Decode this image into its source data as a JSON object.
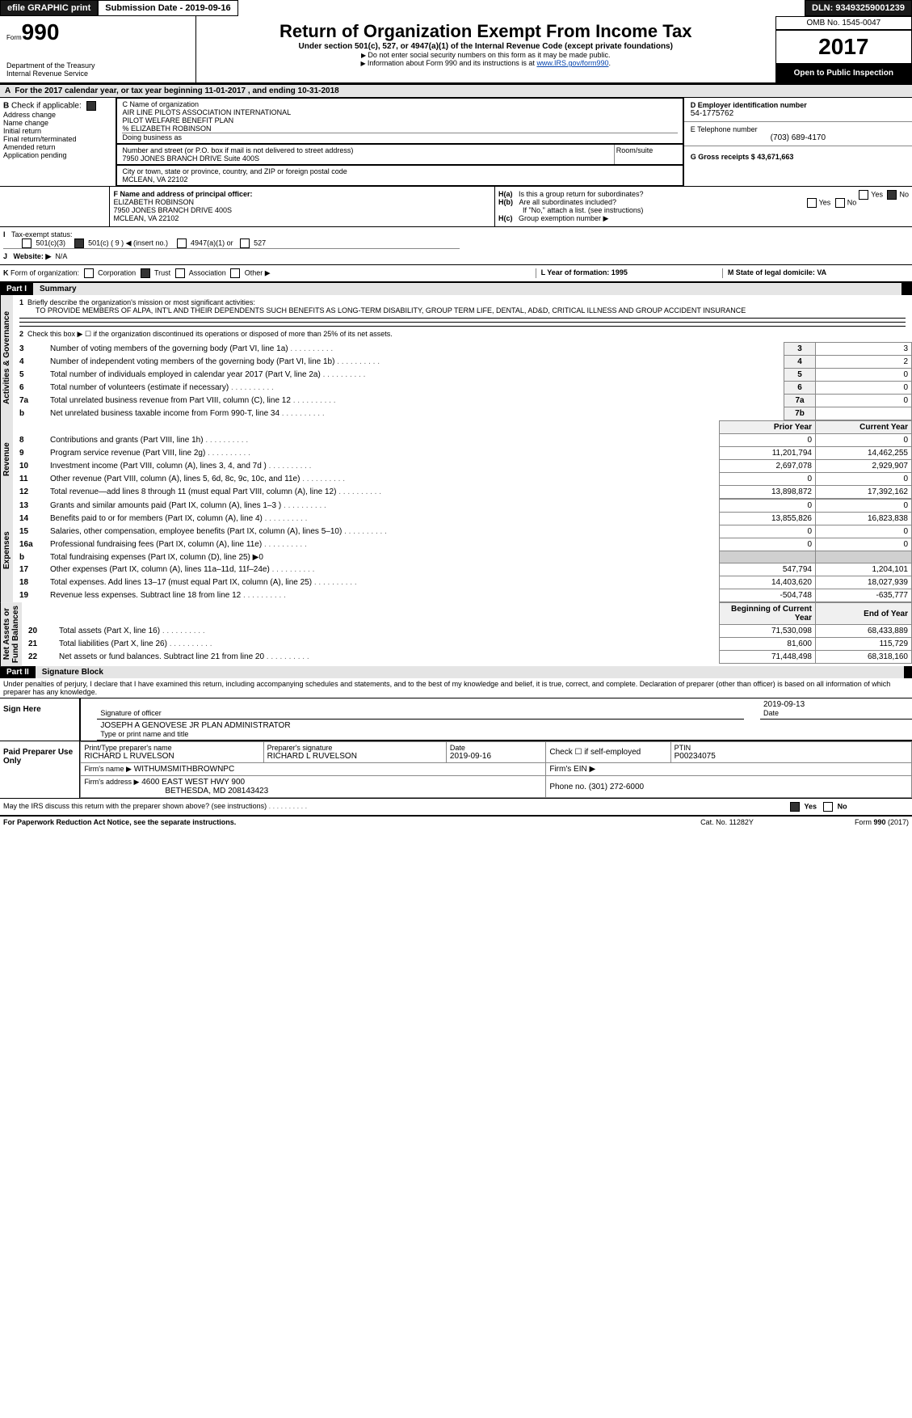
{
  "topbar": {
    "efile": "efile GRAPHIC print",
    "submission_label": "Submission Date - 2019-09-16",
    "dln_label": "DLN: 93493259001239"
  },
  "header": {
    "form_prefix": "Form",
    "form_number": "990",
    "dept": "Department of the Treasury",
    "irs": "Internal Revenue Service",
    "title": "Return of Organization Exempt From Income Tax",
    "subtitle": "Under section 501(c), 527, or 4947(a)(1) of the Internal Revenue Code (except private foundations)",
    "note1": "Do not enter social security numbers on this form as it may be made public.",
    "note2": "Information about Form 990 and its instructions is at ",
    "note2_link": "www.IRS.gov/form990",
    "omb": "OMB No. 1545-0047",
    "year": "2017",
    "open_public": "Open to Public Inspection"
  },
  "period": {
    "line": "For the 2017 calendar year, or tax year beginning 11-01-2017        , and ending 10-31-2018"
  },
  "box_b": {
    "title": "Check if applicable:",
    "items": [
      "Address change",
      "Name change",
      "Initial return",
      "Final return/terminated",
      "Amended return",
      "Application pending"
    ]
  },
  "box_c": {
    "label": "C Name of organization",
    "name1": "AIR LINE PILOTS ASSOCIATION INTERNATIONAL",
    "name2": "PILOT WELFARE BENEFIT PLAN",
    "name3": "% ELIZABETH ROBINSON",
    "dba_label": "Doing business as",
    "addr_label": "Number and street (or P.O. box if mail is not delivered to street address)",
    "room_label": "Room/suite",
    "addr": "7950 JONES BRANCH DRIVE Suite 400S",
    "city_label": "City or town, state or province, country, and ZIP or foreign postal code",
    "city": "MCLEAN, VA  22102"
  },
  "box_d": {
    "label": "D Employer identification number",
    "value": "54-1775762"
  },
  "box_e": {
    "label": "E Telephone number",
    "value": "(703) 689-4170"
  },
  "box_g": {
    "label": "G Gross receipts $ 43,671,663"
  },
  "box_f": {
    "label": "F  Name and address of principal officer:",
    "name": "ELIZABETH ROBINSON",
    "addr": "7950 JONES BRANCH DRIVE 400S",
    "city": "MCLEAN, VA  22102"
  },
  "box_h": {
    "a": "Is this a group return for subordinates?",
    "b": "Are all subordinates included?",
    "b_note": "If \"No,\" attach a list. (see instructions)",
    "c": "Group exemption number ▶",
    "yes": "Yes",
    "no": "No"
  },
  "box_i": {
    "label": "Tax-exempt status:",
    "opt1": "501(c)(3)",
    "opt2": "501(c) ( 9 ) ◀ (insert no.)",
    "opt3": "4947(a)(1) or",
    "opt4": "527"
  },
  "box_j": {
    "label": "Website: ▶",
    "value": "N/A"
  },
  "box_k": {
    "label": "Form of organization:",
    "opts": [
      "Corporation",
      "Trust",
      "Association",
      "Other ▶"
    ]
  },
  "box_l": {
    "label": "L Year of formation: 1995"
  },
  "box_m": {
    "label": "M State of legal domicile: VA"
  },
  "part1": {
    "header": "Part I",
    "title": "Summary",
    "line1_label": "Briefly describe the organization's mission or most significant activities:",
    "line1_text": "TO PROVIDE MEMBERS OF ALPA, INT'L AND THEIR DEPENDENTS SUCH BENEFITS AS LONG-TERM DISABILITY, GROUP TERM LIFE, DENTAL, AD&D, CRITICAL ILLNESS AND GROUP ACCIDENT INSURANCE",
    "line2": "Check this box ▶ ☐ if the organization discontinued its operations or disposed of more than 25% of its net assets.",
    "rows_gov": [
      {
        "n": "3",
        "label": "Number of voting members of the governing body (Part VI, line 1a)",
        "box": "3",
        "val": "3"
      },
      {
        "n": "4",
        "label": "Number of independent voting members of the governing body (Part VI, line 1b)",
        "box": "4",
        "val": "2"
      },
      {
        "n": "5",
        "label": "Total number of individuals employed in calendar year 2017 (Part V, line 2a)",
        "box": "5",
        "val": "0"
      },
      {
        "n": "6",
        "label": "Total number of volunteers (estimate if necessary)",
        "box": "6",
        "val": "0"
      },
      {
        "n": "7a",
        "label": "Total unrelated business revenue from Part VIII, column (C), line 12",
        "box": "7a",
        "val": "0"
      },
      {
        "n": "b",
        "label": "Net unrelated business taxable income from Form 990-T, line 34",
        "box": "7b",
        "val": ""
      }
    ],
    "col_headers": {
      "prior": "Prior Year",
      "current": "Current Year"
    },
    "revenue_rows": [
      {
        "n": "8",
        "label": "Contributions and grants (Part VIII, line 1h)",
        "p": "0",
        "c": "0"
      },
      {
        "n": "9",
        "label": "Program service revenue (Part VIII, line 2g)",
        "p": "11,201,794",
        "c": "14,462,255"
      },
      {
        "n": "10",
        "label": "Investment income (Part VIII, column (A), lines 3, 4, and 7d )",
        "p": "2,697,078",
        "c": "2,929,907"
      },
      {
        "n": "11",
        "label": "Other revenue (Part VIII, column (A), lines 5, 6d, 8c, 9c, 10c, and 11e)",
        "p": "0",
        "c": "0"
      },
      {
        "n": "12",
        "label": "Total revenue—add lines 8 through 11 (must equal Part VIII, column (A), line 12)",
        "p": "13,898,872",
        "c": "17,392,162"
      }
    ],
    "expense_rows": [
      {
        "n": "13",
        "label": "Grants and similar amounts paid (Part IX, column (A), lines 1–3 )",
        "p": "0",
        "c": "0"
      },
      {
        "n": "14",
        "label": "Benefits paid to or for members (Part IX, column (A), line 4)",
        "p": "13,855,826",
        "c": "16,823,838"
      },
      {
        "n": "15",
        "label": "Salaries, other compensation, employee benefits (Part IX, column (A), lines 5–10)",
        "p": "0",
        "c": "0"
      },
      {
        "n": "16a",
        "label": "Professional fundraising fees (Part IX, column (A), line 11e)",
        "p": "0",
        "c": "0"
      },
      {
        "n": "b",
        "label": "Total fundraising expenses (Part IX, column (D), line 25) ▶0",
        "p": "",
        "c": ""
      },
      {
        "n": "17",
        "label": "Other expenses (Part IX, column (A), lines 11a–11d, 11f–24e)",
        "p": "547,794",
        "c": "1,204,101"
      },
      {
        "n": "18",
        "label": "Total expenses. Add lines 13–17 (must equal Part IX, column (A), line 25)",
        "p": "14,403,620",
        "c": "18,027,939"
      },
      {
        "n": "19",
        "label": "Revenue less expenses. Subtract line 18 from line 12",
        "p": "-504,748",
        "c": "-635,777"
      }
    ],
    "net_headers": {
      "beg": "Beginning of Current Year",
      "end": "End of Year"
    },
    "net_rows": [
      {
        "n": "20",
        "label": "Total assets (Part X, line 16)",
        "p": "71,530,098",
        "c": "68,433,889"
      },
      {
        "n": "21",
        "label": "Total liabilities (Part X, line 26)",
        "p": "81,600",
        "c": "115,729"
      },
      {
        "n": "22",
        "label": "Net assets or fund balances. Subtract line 21 from line 20",
        "p": "71,448,498",
        "c": "68,318,160"
      }
    ],
    "side_gov": "Activities & Governance",
    "side_rev": "Revenue",
    "side_exp": "Expenses",
    "side_net": "Net Assets or\nFund Balances"
  },
  "part2": {
    "header": "Part II",
    "title": "Signature Block",
    "penalty": "Under penalties of perjury, I declare that I have examined this return, including accompanying schedules and statements, and to the best of my knowledge and belief, it is true, correct, and complete. Declaration of preparer (other than officer) is based on all information of which preparer has any knowledge.",
    "sign_here": "Sign Here",
    "sig_officer": "Signature of officer",
    "sig_date": "2019-09-13",
    "sig_date_label": "Date",
    "officer_name": "JOSEPH A GENOVESE JR  PLAN ADMINISTRATOR",
    "officer_name_label": "Type or print name and title",
    "paid": "Paid Preparer Use Only",
    "prep_name_label": "Print/Type preparer's name",
    "prep_name": "RICHARD L RUVELSON",
    "prep_sig_label": "Preparer's signature",
    "prep_sig": "RICHARD L RUVELSON",
    "prep_date_label": "Date",
    "prep_date": "2019-09-16",
    "self_emp": "Check ☐ if self-employed",
    "ptin_label": "PTIN",
    "ptin": "P00234075",
    "firm_label": "Firm's name     ▶",
    "firm_name": "WITHUMSMITHBROWNPC",
    "firm_ein_label": "Firm's EIN ▶",
    "firm_addr_label": "Firm's address ▶",
    "firm_addr": "4600 EAST WEST HWY 900",
    "firm_city": "BETHESDA, MD  208143423",
    "firm_phone_label": "Phone no. (301) 272-6000",
    "discuss": "May the IRS discuss this return with the preparer shown above? (see instructions)",
    "discuss_yes": "Yes",
    "discuss_no": "No"
  },
  "footer": {
    "pra": "For Paperwork Reduction Act Notice, see the separate instructions.",
    "cat": "Cat. No. 11282Y",
    "form": "Form 990 (2017)"
  }
}
